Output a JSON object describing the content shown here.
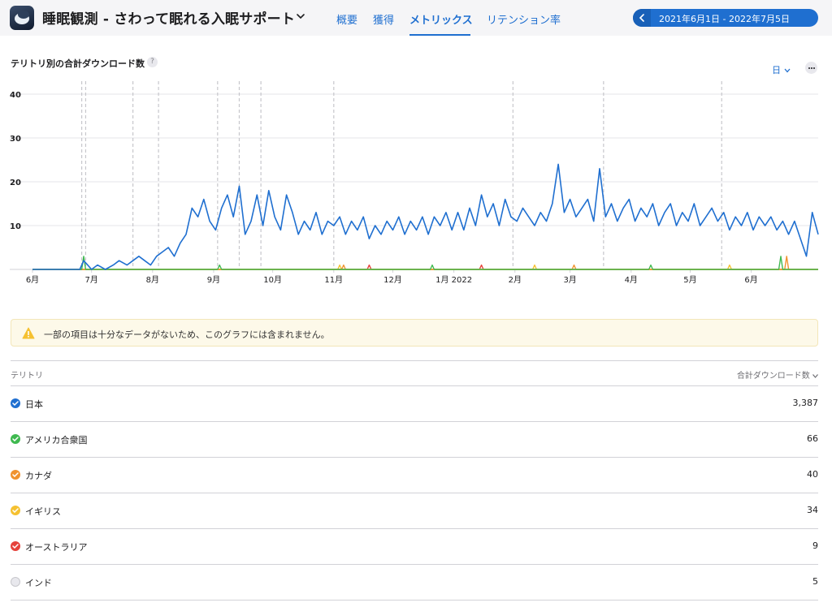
{
  "header": {
    "app_title": "睡眠観測 - さわって眠れる入眠サポート",
    "tabs": [
      {
        "label": "概要",
        "active": false
      },
      {
        "label": "獲得",
        "active": false
      },
      {
        "label": "メトリックス",
        "active": true
      },
      {
        "label": "リテンション率",
        "active": false
      }
    ],
    "date_range": "2021年6月1日 - 2022年7月5日",
    "accent_color": "#1f6fd0"
  },
  "chart_header": {
    "title": "テリトリ別の合計ダウンロード数",
    "help_label": "?",
    "granularity": "日"
  },
  "notice": {
    "text": "一部の項目は十分なデータがないため、このグラフには含まれません。",
    "icon": "warning-icon"
  },
  "table": {
    "col_territory": "テリトリ",
    "col_downloads": "合計ダウンロード数",
    "rows": [
      {
        "name": "日本",
        "value": "3,387",
        "color": "#1f6fd0",
        "checked": true
      },
      {
        "name": "アメリカ合衆国",
        "value": "66",
        "color": "#3fb950",
        "checked": true
      },
      {
        "name": "カナダ",
        "value": "40",
        "color": "#f0922e",
        "checked": true
      },
      {
        "name": "イギリス",
        "value": "34",
        "color": "#f5c131",
        "checked": true
      },
      {
        "name": "オーストラリア",
        "value": "9",
        "color": "#e5423b",
        "checked": true
      },
      {
        "name": "インド",
        "value": "5",
        "color": "#e8e8ed",
        "checked": false
      }
    ]
  },
  "chart_data": {
    "type": "line",
    "title": "テリトリ別の合計ダウンロード数",
    "x_range": [
      "2021-06-01",
      "2022-07-05"
    ],
    "ylim": [
      0,
      40
    ],
    "y_ticks": [
      10,
      20,
      30,
      40
    ],
    "x_tick_labels": [
      "6月",
      "7月",
      "8月",
      "9月",
      "10月",
      "11月",
      "12月",
      "1月 2022",
      "2月",
      "3月",
      "4月",
      "5月",
      "6月"
    ],
    "grid": true,
    "event_marker_dates": [
      "2021-06-26",
      "2021-06-28",
      "2021-07-22",
      "2021-08-04",
      "2021-09-03",
      "2021-09-14",
      "2021-09-25",
      "2021-11-01",
      "2022-01-31",
      "2022-03-18",
      "2022-05-17"
    ],
    "series": [
      {
        "name": "日本",
        "color": "#1f6fd0",
        "points": [
          [
            "2021-06-01",
            0
          ],
          [
            "2021-06-25",
            0
          ],
          [
            "2021-06-27",
            2
          ],
          [
            "2021-06-29",
            1
          ],
          [
            "2021-07-01",
            0
          ],
          [
            "2021-07-04",
            1
          ],
          [
            "2021-07-08",
            0
          ],
          [
            "2021-07-12",
            1
          ],
          [
            "2021-07-15",
            2
          ],
          [
            "2021-07-19",
            1
          ],
          [
            "2021-07-22",
            2
          ],
          [
            "2021-07-25",
            3
          ],
          [
            "2021-07-28",
            2
          ],
          [
            "2021-07-31",
            1
          ],
          [
            "2021-08-03",
            3
          ],
          [
            "2021-08-06",
            4
          ],
          [
            "2021-08-09",
            5
          ],
          [
            "2021-08-12",
            3
          ],
          [
            "2021-08-15",
            6
          ],
          [
            "2021-08-18",
            8
          ],
          [
            "2021-08-21",
            14
          ],
          [
            "2021-08-24",
            12
          ],
          [
            "2021-08-27",
            16
          ],
          [
            "2021-08-30",
            11
          ],
          [
            "2021-09-02",
            9
          ],
          [
            "2021-09-05",
            14
          ],
          [
            "2021-09-08",
            17
          ],
          [
            "2021-09-11",
            12
          ],
          [
            "2021-09-14",
            19
          ],
          [
            "2021-09-17",
            8
          ],
          [
            "2021-09-20",
            11
          ],
          [
            "2021-09-23",
            17
          ],
          [
            "2021-09-26",
            10
          ],
          [
            "2021-09-29",
            18
          ],
          [
            "2021-10-02",
            12
          ],
          [
            "2021-10-05",
            9
          ],
          [
            "2021-10-08",
            17
          ],
          [
            "2021-10-11",
            13
          ],
          [
            "2021-10-14",
            8
          ],
          [
            "2021-10-17",
            11
          ],
          [
            "2021-10-20",
            9
          ],
          [
            "2021-10-23",
            13
          ],
          [
            "2021-10-26",
            8
          ],
          [
            "2021-10-29",
            11
          ],
          [
            "2021-11-01",
            10
          ],
          [
            "2021-11-04",
            12
          ],
          [
            "2021-11-07",
            8
          ],
          [
            "2021-11-10",
            11
          ],
          [
            "2021-11-13",
            9
          ],
          [
            "2021-11-16",
            12
          ],
          [
            "2021-11-19",
            7
          ],
          [
            "2021-11-22",
            10
          ],
          [
            "2021-11-25",
            8
          ],
          [
            "2021-11-28",
            11
          ],
          [
            "2021-12-01",
            9
          ],
          [
            "2021-12-04",
            12
          ],
          [
            "2021-12-07",
            8
          ],
          [
            "2021-12-10",
            11
          ],
          [
            "2021-12-13",
            9
          ],
          [
            "2021-12-16",
            12
          ],
          [
            "2021-12-19",
            8
          ],
          [
            "2021-12-22",
            12
          ],
          [
            "2021-12-25",
            10
          ],
          [
            "2021-12-28",
            13
          ],
          [
            "2021-12-31",
            9
          ],
          [
            "2022-01-03",
            13
          ],
          [
            "2022-01-06",
            9
          ],
          [
            "2022-01-09",
            14
          ],
          [
            "2022-01-12",
            10
          ],
          [
            "2022-01-15",
            17
          ],
          [
            "2022-01-18",
            12
          ],
          [
            "2022-01-21",
            15
          ],
          [
            "2022-01-24",
            10
          ],
          [
            "2022-01-27",
            16
          ],
          [
            "2022-01-30",
            12
          ],
          [
            "2022-02-02",
            11
          ],
          [
            "2022-02-05",
            14
          ],
          [
            "2022-02-08",
            12
          ],
          [
            "2022-02-11",
            10
          ],
          [
            "2022-02-14",
            13
          ],
          [
            "2022-02-17",
            11
          ],
          [
            "2022-02-20",
            15
          ],
          [
            "2022-02-23",
            24
          ],
          [
            "2022-02-26",
            13
          ],
          [
            "2022-03-01",
            16
          ],
          [
            "2022-03-04",
            12
          ],
          [
            "2022-03-07",
            14
          ],
          [
            "2022-03-10",
            16
          ],
          [
            "2022-03-13",
            11
          ],
          [
            "2022-03-16",
            23
          ],
          [
            "2022-03-19",
            12
          ],
          [
            "2022-03-22",
            15
          ],
          [
            "2022-03-25",
            11
          ],
          [
            "2022-03-28",
            14
          ],
          [
            "2022-03-31",
            16
          ],
          [
            "2022-04-03",
            11
          ],
          [
            "2022-04-06",
            14
          ],
          [
            "2022-04-09",
            12
          ],
          [
            "2022-04-12",
            15
          ],
          [
            "2022-04-15",
            10
          ],
          [
            "2022-04-18",
            13
          ],
          [
            "2022-04-21",
            15
          ],
          [
            "2022-04-24",
            10
          ],
          [
            "2022-04-27",
            13
          ],
          [
            "2022-04-30",
            11
          ],
          [
            "2022-05-03",
            15
          ],
          [
            "2022-05-06",
            10
          ],
          [
            "2022-05-09",
            12
          ],
          [
            "2022-05-12",
            14
          ],
          [
            "2022-05-15",
            11
          ],
          [
            "2022-05-18",
            13
          ],
          [
            "2022-05-21",
            9
          ],
          [
            "2022-05-24",
            12
          ],
          [
            "2022-05-27",
            10
          ],
          [
            "2022-05-30",
            13
          ],
          [
            "2022-06-02",
            9
          ],
          [
            "2022-06-05",
            12
          ],
          [
            "2022-06-08",
            10
          ],
          [
            "2022-06-11",
            12
          ],
          [
            "2022-06-14",
            9
          ],
          [
            "2022-06-17",
            11
          ],
          [
            "2022-06-20",
            8
          ],
          [
            "2022-06-23",
            11
          ],
          [
            "2022-06-26",
            7
          ],
          [
            "2022-06-29",
            3
          ],
          [
            "2022-07-02",
            13
          ],
          [
            "2022-07-05",
            8
          ]
        ]
      },
      {
        "name": "アメリカ合衆国",
        "color": "#3fb950",
        "points": [
          [
            "2021-06-01",
            0
          ],
          [
            "2021-06-26",
            0
          ],
          [
            "2021-06-27",
            3
          ],
          [
            "2021-06-28",
            0
          ],
          [
            "2021-09-03",
            0
          ],
          [
            "2021-09-04",
            1
          ],
          [
            "2021-09-05",
            0
          ],
          [
            "2021-12-20",
            0
          ],
          [
            "2021-12-21",
            1
          ],
          [
            "2021-12-22",
            0
          ],
          [
            "2022-04-10",
            0
          ],
          [
            "2022-04-11",
            1
          ],
          [
            "2022-04-12",
            0
          ],
          [
            "2022-06-15",
            0
          ],
          [
            "2022-06-16",
            3
          ],
          [
            "2022-06-17",
            0
          ],
          [
            "2022-07-05",
            0
          ]
        ]
      },
      {
        "name": "カナダ",
        "color": "#f0922e",
        "points": [
          [
            "2021-06-01",
            0
          ],
          [
            "2021-11-05",
            0
          ],
          [
            "2021-11-06",
            1
          ],
          [
            "2021-11-07",
            0
          ],
          [
            "2022-03-02",
            0
          ],
          [
            "2022-03-03",
            1
          ],
          [
            "2022-03-04",
            0
          ],
          [
            "2022-06-18",
            0
          ],
          [
            "2022-06-19",
            3
          ],
          [
            "2022-06-20",
            0
          ],
          [
            "2022-07-05",
            0
          ]
        ]
      },
      {
        "name": "イギリス",
        "color": "#f5c131",
        "points": [
          [
            "2021-06-01",
            0
          ],
          [
            "2021-11-03",
            0
          ],
          [
            "2021-11-04",
            1
          ],
          [
            "2021-11-05",
            0
          ],
          [
            "2022-02-10",
            0
          ],
          [
            "2022-02-11",
            1
          ],
          [
            "2022-02-12",
            0
          ],
          [
            "2022-05-20",
            0
          ],
          [
            "2022-05-21",
            1
          ],
          [
            "2022-05-22",
            0
          ],
          [
            "2022-07-05",
            0
          ]
        ]
      },
      {
        "name": "オーストラリア",
        "color": "#e5423b",
        "points": [
          [
            "2021-06-01",
            0
          ],
          [
            "2021-11-18",
            0
          ],
          [
            "2021-11-19",
            1
          ],
          [
            "2021-11-20",
            0
          ],
          [
            "2022-01-14",
            0
          ],
          [
            "2022-01-15",
            1
          ],
          [
            "2022-01-16",
            0
          ],
          [
            "2022-07-05",
            0
          ]
        ]
      }
    ]
  }
}
